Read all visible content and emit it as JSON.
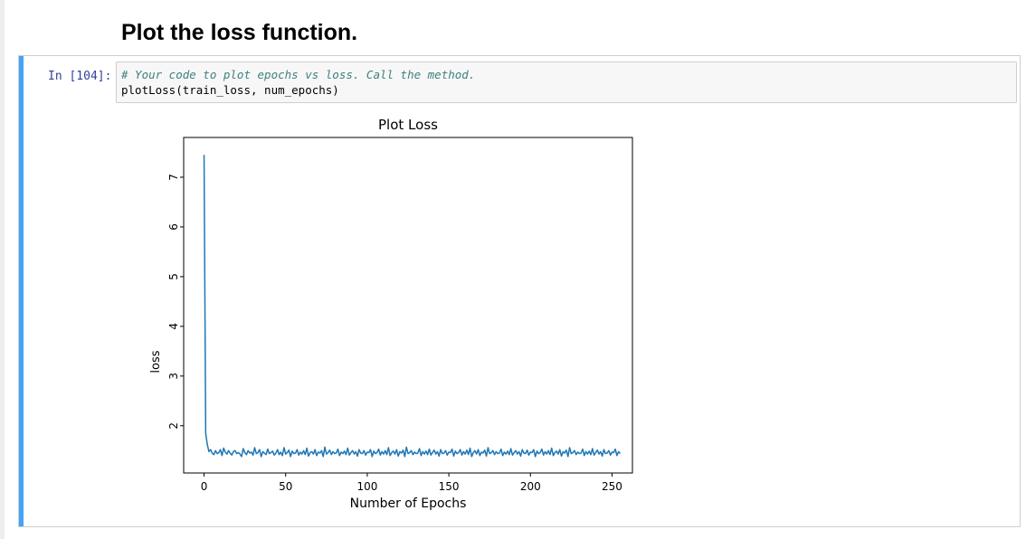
{
  "heading": "Plot the loss function.",
  "cell": {
    "prompt": "In [104]:",
    "code_lines": [
      "# Your code to plot epochs vs loss. Call the method.",
      "plotLoss(train_loss, num_epochs)"
    ]
  },
  "colors": {
    "cell_bar": "#42a5f5",
    "line": "#1f77b4",
    "prompt": "#303f9f",
    "comment": "#408080"
  },
  "chart_data": {
    "type": "line",
    "title": "Plot Loss",
    "xlabel": "Number of Epochs",
    "ylabel": "loss",
    "xlim": [
      -12.5,
      262.5
    ],
    "ylim": [
      1.05,
      7.8
    ],
    "xticks": [
      0,
      50,
      100,
      150,
      200,
      250
    ],
    "yticks": [
      2,
      3,
      4,
      5,
      6,
      7
    ],
    "grid": false,
    "series": [
      {
        "values": [
          7.45,
          1.85,
          1.62,
          1.48,
          1.52,
          1.45,
          1.42,
          1.5,
          1.44,
          1.46,
          1.52,
          1.4,
          1.55,
          1.47,
          1.43,
          1.5,
          1.45,
          1.41,
          1.48,
          1.5,
          1.44,
          1.46,
          1.43,
          1.38,
          1.54,
          1.46,
          1.42,
          1.5,
          1.45,
          1.47,
          1.41,
          1.56,
          1.44,
          1.46,
          1.52,
          1.38,
          1.48,
          1.45,
          1.42,
          1.53,
          1.44,
          1.46,
          1.49,
          1.41,
          1.45,
          1.52,
          1.42,
          1.47,
          1.4,
          1.56,
          1.43,
          1.46,
          1.51,
          1.38,
          1.49,
          1.44,
          1.45,
          1.52,
          1.41,
          1.47,
          1.43,
          1.5,
          1.42,
          1.55,
          1.39,
          1.46,
          1.48,
          1.43,
          1.52,
          1.4,
          1.47,
          1.45,
          1.5,
          1.38,
          1.57,
          1.43,
          1.46,
          1.51,
          1.42,
          1.48,
          1.44,
          1.45,
          1.53,
          1.4,
          1.47,
          1.44,
          1.49,
          1.42,
          1.55,
          1.41,
          1.46,
          1.5,
          1.43,
          1.48,
          1.39,
          1.52,
          1.45,
          1.44,
          1.5,
          1.41,
          1.47,
          1.46,
          1.52,
          1.38,
          1.49,
          1.44,
          1.46,
          1.53,
          1.41,
          1.48,
          1.43,
          1.5,
          1.42,
          1.56,
          1.4,
          1.46,
          1.49,
          1.43,
          1.52,
          1.39,
          1.48,
          1.45,
          1.51,
          1.38,
          1.57,
          1.44,
          1.46,
          1.5,
          1.42,
          1.47,
          1.44,
          1.45,
          1.54,
          1.4,
          1.48,
          1.43,
          1.49,
          1.42,
          1.53,
          1.41,
          1.46,
          1.51,
          1.43,
          1.48,
          1.39,
          1.52,
          1.44,
          1.45,
          1.5,
          1.41,
          1.47,
          1.46,
          1.53,
          1.39,
          1.49,
          1.44,
          1.46,
          1.52,
          1.41,
          1.48,
          1.43,
          1.51,
          1.42,
          1.55,
          1.38,
          1.46,
          1.5,
          1.43,
          1.52,
          1.4,
          1.47,
          1.45,
          1.51,
          1.39,
          1.56,
          1.44,
          1.46,
          1.5,
          1.42,
          1.48,
          1.44,
          1.45,
          1.53,
          1.4,
          1.47,
          1.43,
          1.49,
          1.42,
          1.54,
          1.41,
          1.46,
          1.5,
          1.43,
          1.48,
          1.39,
          1.52,
          1.45,
          1.44,
          1.51,
          1.41,
          1.47,
          1.46,
          1.52,
          1.38,
          1.49,
          1.44,
          1.46,
          1.53,
          1.41,
          1.48,
          1.43,
          1.5,
          1.42,
          1.55,
          1.4,
          1.46,
          1.49,
          1.43,
          1.52,
          1.39,
          1.48,
          1.45,
          1.51,
          1.38,
          1.56,
          1.44,
          1.46,
          1.5,
          1.42,
          1.47,
          1.44,
          1.45,
          1.53,
          1.4,
          1.48,
          1.43,
          1.49,
          1.42,
          1.54,
          1.41,
          1.46,
          1.51,
          1.43,
          1.48,
          1.39,
          1.52,
          1.44,
          1.45,
          1.5,
          1.41,
          1.47,
          1.46,
          1.53,
          1.4,
          1.48,
          1.44
        ]
      }
    ]
  }
}
